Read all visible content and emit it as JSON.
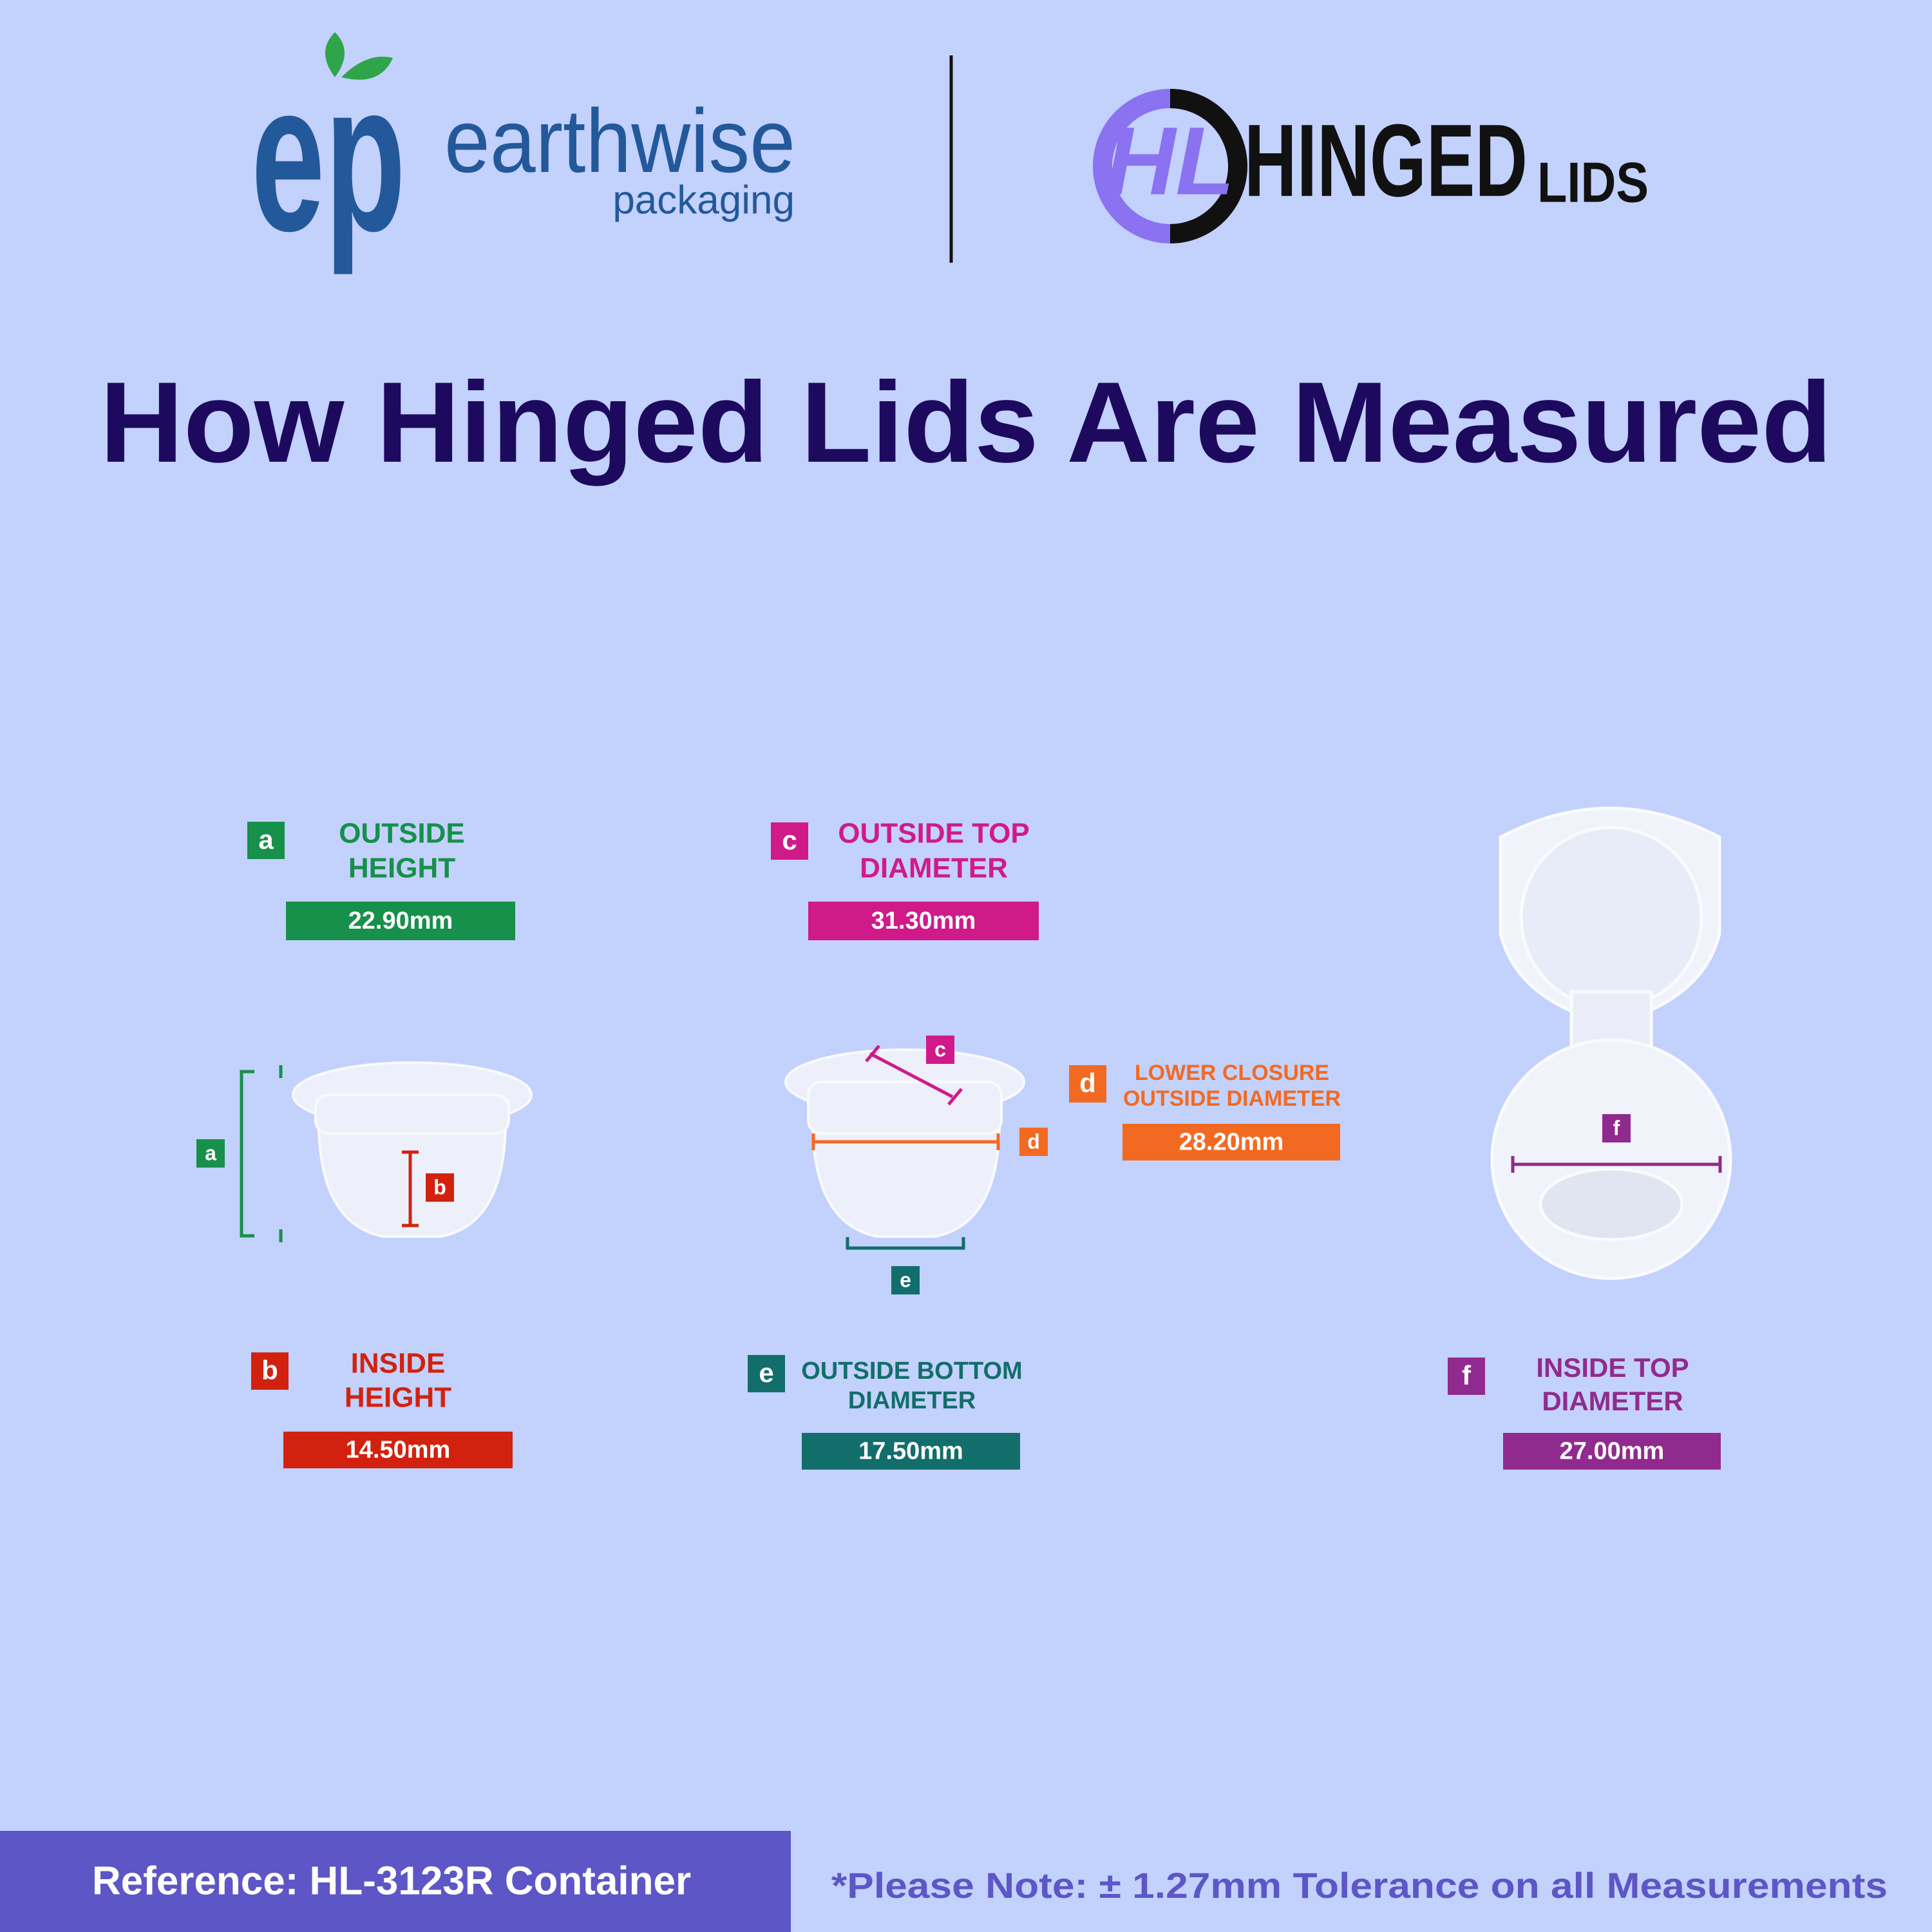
{
  "logos": {
    "earthwise": {
      "mark": "ep",
      "name": "earthwise",
      "tagline": "packaging"
    },
    "hinged": {
      "mark": "HL",
      "name": "HINGED",
      "suffix": "LIDS"
    }
  },
  "title": "How Hinged Lids Are Measured",
  "measurements": [
    {
      "letter": "a",
      "label": [
        "OUTSIDE",
        "HEIGHT"
      ],
      "value": "22.90mm",
      "color": "#16904a"
    },
    {
      "letter": "c",
      "label": [
        "OUTSIDE TOP",
        "DIAMETER"
      ],
      "value": "31.30mm",
      "color": "#d01a8a"
    },
    {
      "letter": "d",
      "label": [
        "LOWER CLOSURE",
        "OUTSIDE DIAMETER"
      ],
      "value": "28.20mm",
      "color": "#f26a22"
    },
    {
      "letter": "b",
      "label": [
        "INSIDE",
        "HEIGHT"
      ],
      "value": "14.50mm",
      "color": "#d2220f"
    },
    {
      "letter": "e",
      "label": [
        "OUTSIDE BOTTOM",
        "DIAMETER"
      ],
      "value": "17.50mm",
      "color": "#126e6a"
    },
    {
      "letter": "f",
      "label": [
        "INSIDE TOP",
        "DIAMETER"
      ],
      "value": "27.00mm",
      "color": "#912a8e"
    }
  ],
  "footer": {
    "reference": "Reference: HL-3123R Container",
    "note": "*Please Note: ± 1.27mm Tolerance on all Measurements"
  }
}
